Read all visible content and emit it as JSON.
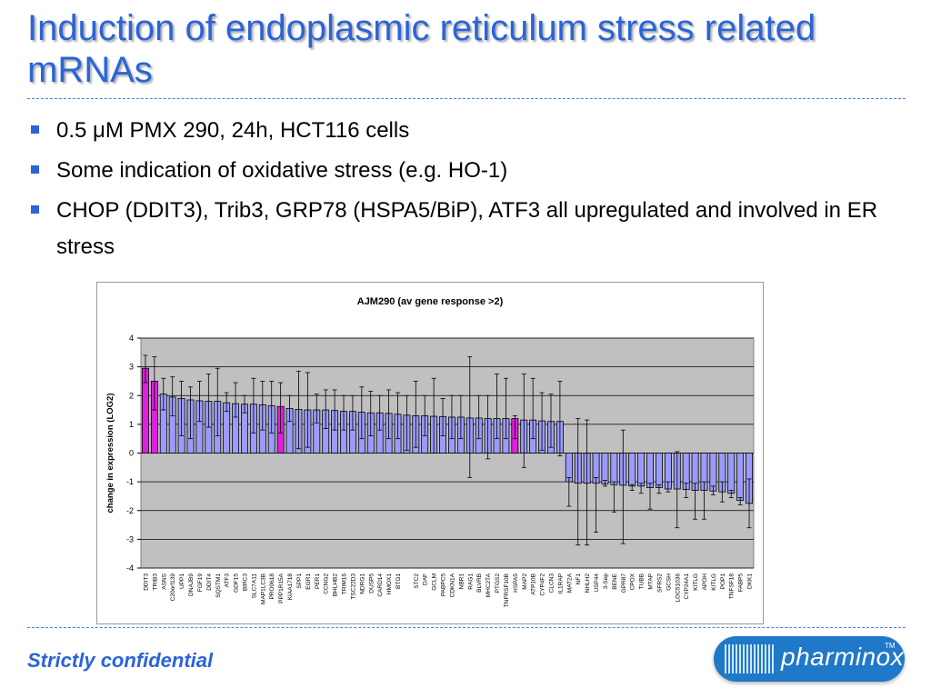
{
  "slide": {
    "title": "Induction of endoplasmic reticulum stress related mRNAs",
    "bullets": [
      "0.5 μM PMX 290, 24h, HCT116 cells",
      "Some indication of oxidative stress (e.g. HO-1)",
      "CHOP (DDIT3), Trib3, GRP78 (HSPA5/BiP), ATF3 all upregulated and involved in ER stress"
    ],
    "footer": "Strictly confidential",
    "logo_text": "pharminox",
    "logo_tm": "TM"
  },
  "colors": {
    "title": "#2a64d8",
    "bar_default": "#9b9bff",
    "bar_highlight": "#e020e0",
    "plot_background": "#c0c0c0"
  },
  "chart_data": {
    "type": "bar",
    "title": "AJM290 (av gene response >2)",
    "ylabel": "change in expression (LOG2)",
    "xlabel": "",
    "ylim": [
      -4,
      4
    ],
    "yticks": [
      4,
      3,
      2,
      1,
      0,
      -1,
      -2,
      -3,
      -4
    ],
    "grid": true,
    "error_bars": true,
    "highlighted_categories": [
      "DDIT3",
      "TRIB3",
      "PPP1R15A",
      "HSPA5"
    ],
    "categories": [
      "DDIT3",
      "TRIB3",
      "ASNS",
      "C20orf139",
      "UPP1",
      "DNAJB9",
      "FGF19",
      "DDIT4",
      "SQSTM1",
      "ATF3",
      "GDF15",
      "BIRC3",
      "SLC7A11",
      "MAP1LC3B",
      "PRO0618",
      "PPP1R15A",
      "KIAA1718",
      "SPP1",
      "EGR1",
      "PER1",
      "CCNG2",
      "BHLHB2",
      "TRIM16",
      "TSC22D3",
      "NDRG1",
      "DUSP5",
      "CARD14",
      "HMOX1",
      "BTG1",
      "",
      "STC2",
      "DAF",
      "GCLM",
      "PABPC5",
      "CDKN1A",
      "NBR1",
      "RAG1",
      "BLVRB",
      "MHC2TA",
      "PTGS2",
      "TNFRSF10B",
      "HSPA5",
      "MAP2",
      "ATP10B",
      "CYP4F2",
      "CLCN3",
      "IL1RAP",
      "MAT2A",
      "NF1",
      "NHLH2",
      "USP44",
      "3-Sep",
      "BENE",
      "GPR87",
      "CPOX",
      "TUBB",
      "MTAP",
      "SFRS2",
      "GCSH",
      "LOC51036",
      "CYP24A1",
      "KITLG",
      "APOH",
      "KITLG",
      "POP1",
      "TNFSF18",
      "FABP5",
      "DKK1"
    ],
    "series": [
      {
        "values": [
          2.95,
          2.5,
          2.05,
          1.95,
          1.9,
          1.85,
          1.82,
          1.8,
          1.8,
          1.75,
          1.72,
          1.7,
          1.7,
          1.68,
          1.65,
          1.62,
          1.55,
          1.52,
          1.5,
          1.5,
          1.5,
          1.48,
          1.45,
          1.45,
          1.42,
          1.4,
          1.4,
          1.38,
          1.35,
          1.32,
          1.3,
          1.3,
          1.28,
          1.27,
          1.25,
          1.25,
          1.22,
          1.22,
          1.2,
          1.2,
          1.2,
          1.2,
          1.15,
          1.15,
          1.12,
          1.1,
          1.1,
          -1.0,
          -1.05,
          -1.05,
          -1.05,
          -1.07,
          -1.1,
          -1.12,
          -1.15,
          -1.15,
          -1.2,
          -1.2,
          -1.25,
          -1.25,
          -1.27,
          -1.3,
          -1.3,
          -1.32,
          -1.35,
          -1.4,
          -1.65,
          -1.75
        ],
        "err_high": [
          3.4,
          3.35,
          2.6,
          2.65,
          2.5,
          2.3,
          2.5,
          2.75,
          2.95,
          2.1,
          2.45,
          2.0,
          2.6,
          2.5,
          2.5,
          2.45,
          2.0,
          2.85,
          2.8,
          2.05,
          2.2,
          2.2,
          2.0,
          2.0,
          2.3,
          2.15,
          2.0,
          2.2,
          2.1,
          2.0,
          2.5,
          2.0,
          2.6,
          1.9,
          2.0,
          2.0,
          3.35,
          2.0,
          2.0,
          2.75,
          2.6,
          1.3,
          2.75,
          2.6,
          2.1,
          2.05,
          2.5,
          -0.85,
          1.2,
          1.15,
          -0.85,
          -0.95,
          -1.0,
          0.8,
          -1.1,
          -1.05,
          -1.05,
          -1.1,
          -1.0,
          0.05,
          -1.05,
          -1.05,
          -1.0,
          -1.15,
          -1.0,
          -1.3,
          -1.55,
          -0.9
        ],
        "err_low": [
          2.45,
          1.5,
          1.5,
          1.3,
          0.6,
          0.5,
          1.1,
          0.9,
          0.6,
          1.45,
          1.25,
          1.4,
          0.7,
          0.8,
          0.7,
          0.7,
          1.1,
          0.15,
          0.2,
          1.05,
          0.85,
          0.8,
          0.8,
          0.8,
          0.5,
          0.6,
          0.8,
          0.5,
          0.5,
          0.1,
          0.2,
          0.6,
          0.0,
          0.6,
          0.5,
          0.5,
          -0.85,
          0.5,
          -0.2,
          0.5,
          0.5,
          0.5,
          -0.5,
          0.5,
          0.1,
          0.2,
          -0.1,
          -1.85,
          -3.2,
          -3.2,
          -2.75,
          -1.15,
          -2.05,
          -3.15,
          -1.3,
          -1.4,
          -1.95,
          -1.4,
          -1.35,
          -2.6,
          -1.55,
          -2.3,
          -2.3,
          -1.45,
          -1.7,
          -1.55,
          -1.8,
          -2.6
        ]
      }
    ]
  }
}
